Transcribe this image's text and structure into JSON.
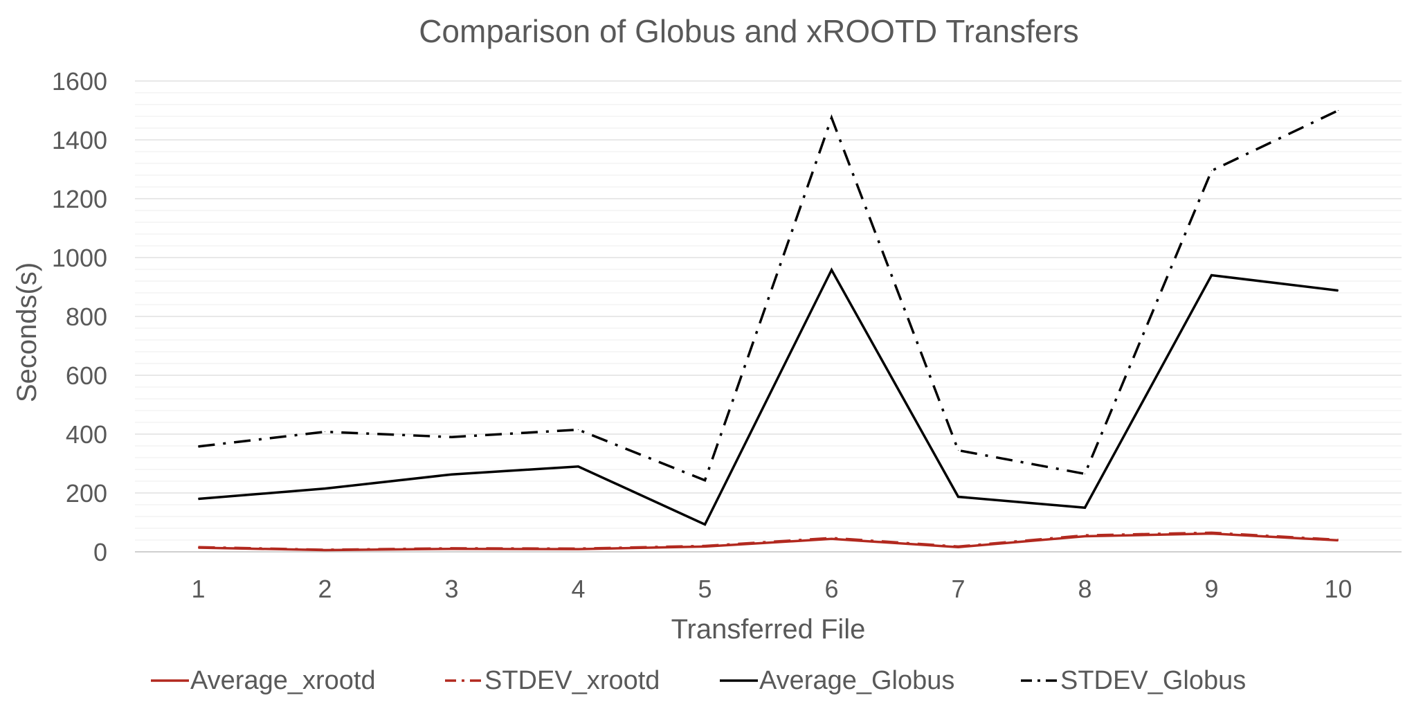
{
  "chart_data": {
    "type": "line",
    "title": "Comparison of Globus and xROOTD Transfers",
    "xlabel": "Transferred File",
    "ylabel": "Seconds(s)",
    "categories": [
      "1",
      "2",
      "3",
      "4",
      "5",
      "6",
      "7",
      "8",
      "9",
      "10"
    ],
    "y_ticks": [
      "0",
      "200",
      "400",
      "600",
      "800",
      "1000",
      "1200",
      "1400",
      "1600"
    ],
    "ylim": [
      0,
      1600
    ],
    "grid": true,
    "legend_position": "bottom",
    "series": [
      {
        "name": "Average_xrootd",
        "color": "#B2291F",
        "dash": "solid",
        "values": [
          14,
          6,
          10,
          9,
          18,
          44,
          16,
          53,
          62,
          39
        ]
      },
      {
        "name": "STDEV_xrootd",
        "color": "#B2291F",
        "dash": "dash-dot",
        "values": [
          16,
          7,
          12,
          11,
          20,
          47,
          18,
          56,
          65,
          41
        ]
      },
      {
        "name": "Average_Globus",
        "color": "#000000",
        "dash": "solid",
        "values": [
          180,
          215,
          263,
          290,
          93,
          958,
          187,
          150,
          940,
          888
        ]
      },
      {
        "name": "STDEV_Globus",
        "color": "#000000",
        "dash": "dash-dot",
        "values": [
          358,
          408,
          390,
          415,
          243,
          1475,
          345,
          265,
          1295,
          1500
        ]
      }
    ]
  }
}
